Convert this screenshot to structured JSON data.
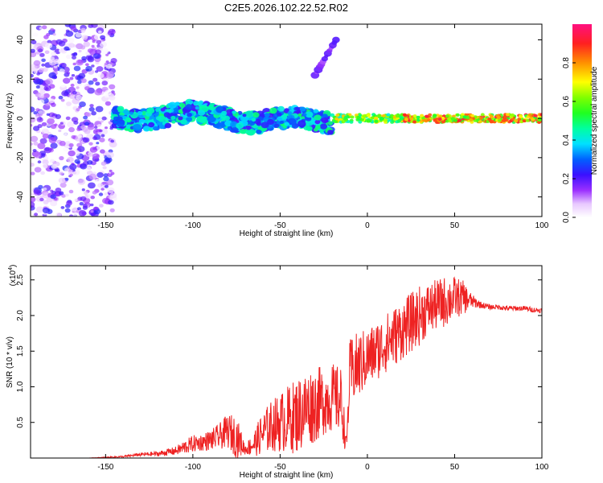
{
  "title": "C2E5.2026.102.22.52.R02",
  "chart_data": [
    {
      "type": "heatmap",
      "xlabel": "Height of straight line (km)",
      "ylabel": "Frequency (Hz)",
      "xlim": [
        -193,
        100
      ],
      "ylim": [
        -50,
        48
      ],
      "x_ticks": [
        -150,
        -100,
        -50,
        0,
        50,
        100
      ],
      "y_ticks": [
        -40,
        -20,
        0,
        20,
        40
      ],
      "colorbar": {
        "label": "Normalized spectral amplitude",
        "range": [
          0.0,
          1.0
        ],
        "ticks": [
          0.0,
          0.2,
          0.4,
          0.6,
          0.8
        ],
        "tick_labels": [
          "0.0",
          "0.2",
          "0.4",
          "0.6",
          "0.8"
        ]
      },
      "features": [
        {
          "x_range": [
            -193,
            -145
          ],
          "y_range": [
            -50,
            48
          ],
          "amplitude": [
            0.0,
            0.25
          ],
          "kind": "scattered noise"
        },
        {
          "x_range": [
            -145,
            -20
          ],
          "y_center": 0,
          "half_width_hz": 5,
          "amplitude": [
            0.2,
            0.5
          ],
          "kind": "broad signal band"
        },
        {
          "x_range": [
            -20,
            100
          ],
          "y_center": 0,
          "half_width_hz": 2,
          "amplitude": [
            0.5,
            0.95
          ],
          "kind": "narrow carrier line"
        },
        {
          "x_range": [
            -30,
            -18
          ],
          "y_range": [
            22,
            40
          ],
          "amplitude": [
            0.1,
            0.2
          ],
          "kind": "faint diagonal streak"
        }
      ]
    },
    {
      "type": "line",
      "xlabel": "Height of straight line (km)",
      "ylabel": "SNR (10 * v/v)",
      "y_multiplier_label": "(x10",
      "y_multiplier_exp": "4",
      "y_multiplier_close": ")",
      "xlim": [
        -193,
        100
      ],
      "ylim": [
        0.0,
        2.7
      ],
      "x_ticks": [
        -150,
        -100,
        -50,
        0,
        50,
        100
      ],
      "y_ticks": [
        0.5,
        1.0,
        1.5,
        2.0,
        2.5
      ],
      "y_tick_labels": [
        "0.5",
        "1.0",
        "1.5",
        "2.0",
        "2.5"
      ],
      "series": [
        {
          "color": "#ee2222",
          "x": [
            -193,
            -160,
            -140,
            -130,
            -120,
            -110,
            -105,
            -100,
            -95,
            -90,
            -85,
            -80,
            -75,
            -70,
            -65,
            -60,
            -55,
            -50,
            -45,
            -40,
            -35,
            -30,
            -25,
            -20,
            -15,
            -12,
            -10,
            -5,
            0,
            5,
            10,
            15,
            20,
            25,
            30,
            35,
            40,
            45,
            50,
            55,
            60,
            65,
            70,
            75,
            80,
            85,
            90,
            95,
            100
          ],
          "y": [
            0.0,
            0.0,
            0.02,
            0.05,
            0.06,
            0.1,
            0.15,
            0.2,
            0.22,
            0.25,
            0.3,
            0.38,
            0.3,
            0.12,
            0.2,
            0.35,
            0.45,
            0.5,
            0.55,
            0.6,
            0.7,
            0.75,
            0.8,
            0.85,
            0.8,
            0.15,
            1.2,
            1.3,
            1.4,
            1.5,
            1.6,
            1.7,
            1.8,
            1.9,
            2.0,
            2.1,
            2.15,
            2.2,
            2.25,
            2.25,
            2.2,
            2.15,
            2.12,
            2.12,
            2.1,
            2.1,
            2.1,
            2.08,
            2.07
          ],
          "noise_amplitude": [
            0.0,
            0.0,
            0.01,
            0.02,
            0.03,
            0.05,
            0.08,
            0.1,
            0.1,
            0.12,
            0.15,
            0.2,
            0.25,
            0.06,
            0.15,
            0.25,
            0.3,
            0.35,
            0.4,
            0.45,
            0.45,
            0.45,
            0.4,
            0.4,
            0.4,
            0.1,
            0.4,
            0.4,
            0.35,
            0.35,
            0.35,
            0.35,
            0.35,
            0.35,
            0.35,
            0.3,
            0.3,
            0.3,
            0.25,
            0.2,
            0.08,
            0.04,
            0.03,
            0.03,
            0.03,
            0.03,
            0.03,
            0.03,
            0.03
          ]
        }
      ]
    }
  ]
}
